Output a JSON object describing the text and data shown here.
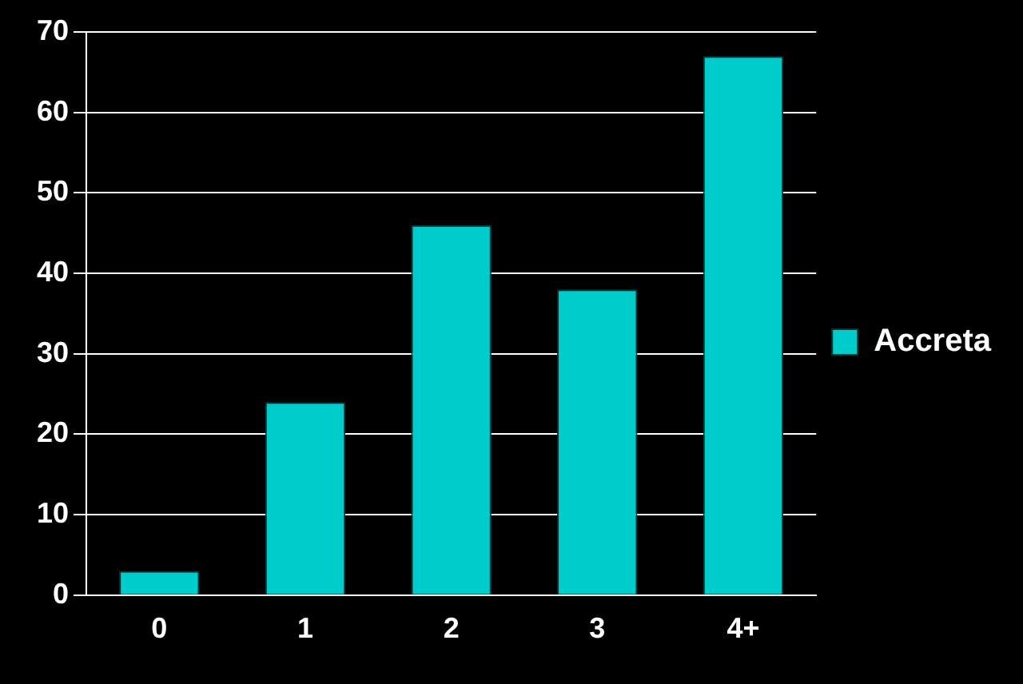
{
  "chart_data": {
    "type": "bar",
    "categories": [
      "0",
      "1",
      "2",
      "3",
      "4+"
    ],
    "series": [
      {
        "name": "Accreta",
        "color": "#00cccc",
        "values": [
          3,
          24,
          46,
          38,
          67
        ]
      }
    ],
    "ylim": [
      0,
      70
    ],
    "yticks": [
      0,
      10,
      20,
      30,
      40,
      50,
      60,
      70
    ],
    "grid": "y",
    "legend": "right"
  }
}
